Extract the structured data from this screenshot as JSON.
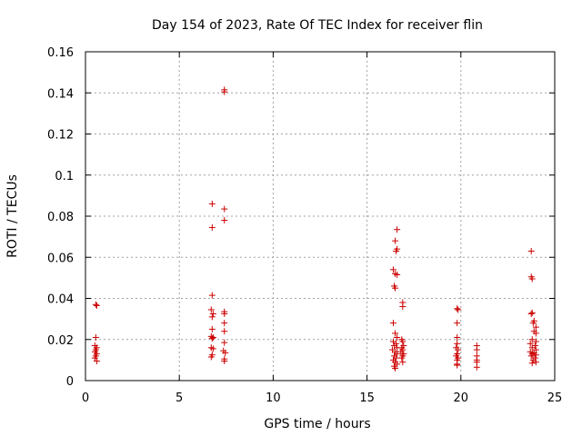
{
  "chart_data": {
    "type": "scatter",
    "title": "Day 154 of 2023, Rate Of TEC Index for receiver flin",
    "xlabel": "GPS time / hours",
    "ylabel": "ROTI / TECUs",
    "xlim": [
      0,
      25
    ],
    "ylim": [
      0,
      0.16
    ],
    "x_ticks": [
      0,
      5,
      10,
      15,
      20,
      25
    ],
    "y_ticks": [
      0,
      0.02,
      0.04,
      0.06,
      0.08,
      0.1,
      0.12,
      0.14,
      0.16
    ],
    "x_tick_labels": [
      "0",
      "5",
      "10",
      "15",
      "20",
      "25"
    ],
    "y_tick_labels": [
      "0",
      "0.02",
      "0.04",
      "0.06",
      "0.08",
      "0.1",
      "0.12",
      "0.14",
      "0.16"
    ],
    "grid": true,
    "marker": "+",
    "marker_color": "#cc0000",
    "points": [
      [
        0.55,
        0.037
      ],
      [
        0.6,
        0.0365
      ],
      [
        0.55,
        0.021
      ],
      [
        0.5,
        0.017
      ],
      [
        0.6,
        0.016
      ],
      [
        0.55,
        0.015
      ],
      [
        0.5,
        0.014
      ],
      [
        0.6,
        0.013
      ],
      [
        0.55,
        0.012
      ],
      [
        0.5,
        0.011
      ],
      [
        0.6,
        0.0095
      ],
      [
        6.75,
        0.086
      ],
      [
        6.75,
        0.0745
      ],
      [
        6.75,
        0.0415
      ],
      [
        6.7,
        0.0345
      ],
      [
        6.8,
        0.0325
      ],
      [
        6.75,
        0.031
      ],
      [
        6.75,
        0.025
      ],
      [
        6.7,
        0.0215
      ],
      [
        6.8,
        0.021
      ],
      [
        6.75,
        0.0205
      ],
      [
        6.7,
        0.016
      ],
      [
        6.8,
        0.0155
      ],
      [
        6.75,
        0.0125
      ],
      [
        6.7,
        0.0115
      ],
      [
        7.4,
        0.1415
      ],
      [
        7.4,
        0.1405
      ],
      [
        7.4,
        0.0835
      ],
      [
        7.4,
        0.078
      ],
      [
        7.4,
        0.0335
      ],
      [
        7.4,
        0.0325
      ],
      [
        7.4,
        0.028
      ],
      [
        7.4,
        0.024
      ],
      [
        7.4,
        0.0185
      ],
      [
        7.35,
        0.0145
      ],
      [
        7.45,
        0.0135
      ],
      [
        7.4,
        0.0105
      ],
      [
        7.4,
        0.0095
      ],
      [
        16.6,
        0.0735
      ],
      [
        16.5,
        0.068
      ],
      [
        16.6,
        0.064
      ],
      [
        16.55,
        0.063
      ],
      [
        16.4,
        0.054
      ],
      [
        16.5,
        0.052
      ],
      [
        16.6,
        0.0515
      ],
      [
        16.45,
        0.046
      ],
      [
        16.5,
        0.045
      ],
      [
        16.4,
        0.028
      ],
      [
        16.5,
        0.023
      ],
      [
        16.6,
        0.021
      ],
      [
        16.4,
        0.019
      ],
      [
        16.55,
        0.018
      ],
      [
        16.45,
        0.017
      ],
      [
        16.6,
        0.016
      ],
      [
        16.35,
        0.015
      ],
      [
        16.5,
        0.014
      ],
      [
        16.6,
        0.013
      ],
      [
        16.45,
        0.012
      ],
      [
        16.55,
        0.011
      ],
      [
        16.4,
        0.01
      ],
      [
        16.5,
        0.009
      ],
      [
        16.6,
        0.008
      ],
      [
        16.45,
        0.007
      ],
      [
        16.5,
        0.006
      ],
      [
        16.9,
        0.038
      ],
      [
        16.9,
        0.036
      ],
      [
        16.85,
        0.02
      ],
      [
        16.9,
        0.019
      ],
      [
        16.95,
        0.017
      ],
      [
        16.85,
        0.016
      ],
      [
        16.9,
        0.015
      ],
      [
        16.8,
        0.014
      ],
      [
        16.95,
        0.013
      ],
      [
        16.9,
        0.012
      ],
      [
        16.85,
        0.011
      ],
      [
        16.9,
        0.009
      ],
      [
        19.8,
        0.035
      ],
      [
        19.85,
        0.0345
      ],
      [
        19.8,
        0.028
      ],
      [
        19.8,
        0.021
      ],
      [
        19.8,
        0.018
      ],
      [
        19.75,
        0.016
      ],
      [
        19.85,
        0.015
      ],
      [
        19.8,
        0.013
      ],
      [
        19.75,
        0.012
      ],
      [
        19.85,
        0.011
      ],
      [
        19.8,
        0.01
      ],
      [
        19.8,
        0.008
      ],
      [
        19.8,
        0.0075
      ],
      [
        20.85,
        0.017
      ],
      [
        20.85,
        0.015
      ],
      [
        20.85,
        0.012
      ],
      [
        20.85,
        0.01
      ],
      [
        20.85,
        0.009
      ],
      [
        20.85,
        0.0065
      ],
      [
        23.75,
        0.063
      ],
      [
        23.75,
        0.0505
      ],
      [
        23.8,
        0.0495
      ],
      [
        23.8,
        0.033
      ],
      [
        23.75,
        0.0325
      ],
      [
        23.9,
        0.029
      ],
      [
        23.85,
        0.028
      ],
      [
        24.0,
        0.026
      ],
      [
        23.9,
        0.024
      ],
      [
        24.0,
        0.023
      ],
      [
        23.8,
        0.02
      ],
      [
        24.0,
        0.019
      ],
      [
        23.7,
        0.018
      ],
      [
        23.95,
        0.017
      ],
      [
        23.8,
        0.016
      ],
      [
        24.0,
        0.015
      ],
      [
        23.7,
        0.014
      ],
      [
        23.9,
        0.0135
      ],
      [
        23.8,
        0.013
      ],
      [
        24.0,
        0.0125
      ],
      [
        23.75,
        0.012
      ],
      [
        23.95,
        0.011
      ],
      [
        23.85,
        0.01
      ],
      [
        24.0,
        0.009
      ],
      [
        23.8,
        0.0085
      ]
    ]
  }
}
